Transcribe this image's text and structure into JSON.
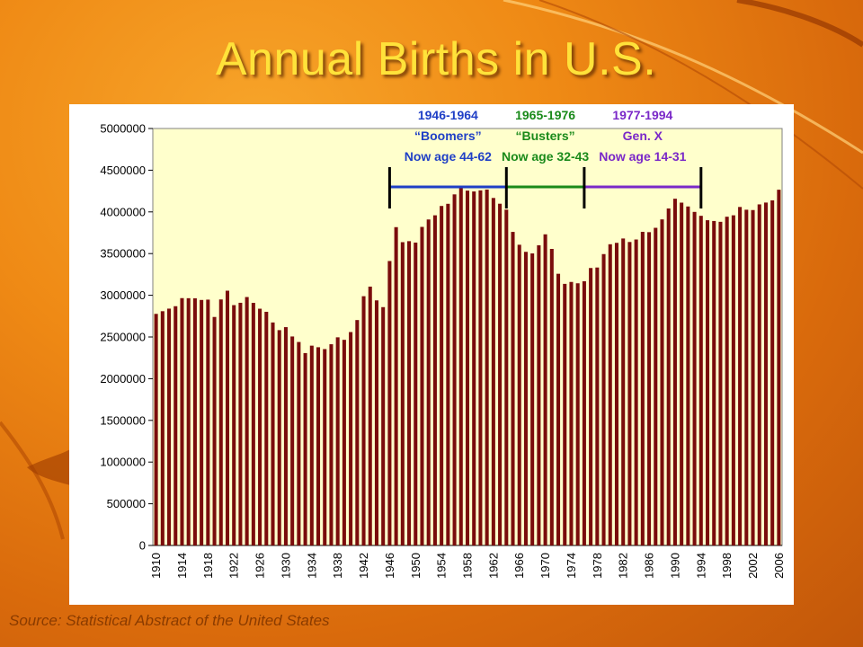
{
  "slide": {
    "title": "Annual Births in U.S.",
    "source": "Source: Statistical Abstract of the United States"
  },
  "colors": {
    "bar": "#7a0c0c",
    "plot_bg": "#ffffcc",
    "boomers": "#1f3fc6",
    "busters": "#1a8a1a",
    "genx": "#7a28c8",
    "title": "#ffe23a"
  },
  "generations": [
    {
      "lines": [
        "1946-1964",
        "“Boomers”",
        "Now age 44-62"
      ],
      "start": 1946,
      "end": 1964,
      "color": "#1f3fc6"
    },
    {
      "lines": [
        "1965-1976",
        "“Busters”",
        "Now age 32-43"
      ],
      "start": 1964,
      "end": 1976,
      "color": "#1a8a1a"
    },
    {
      "lines": [
        "1977-1994",
        "Gen. X",
        "Now age 14-31"
      ],
      "start": 1976,
      "end": 1994,
      "color": "#7a28c8"
    }
  ],
  "chart_data": {
    "type": "bar",
    "title": "Annual Births in U.S.",
    "xlabel": "",
    "ylabel": "",
    "ylim": [
      0,
      5000000
    ],
    "yticks": [
      0,
      500000,
      1000000,
      1500000,
      2000000,
      2500000,
      3000000,
      3500000,
      4000000,
      4500000,
      5000000
    ],
    "xtick_labels": [
      "1910",
      "1914",
      "1918",
      "1922",
      "1926",
      "1930",
      "1934",
      "1938",
      "1942",
      "1946",
      "1950",
      "1954",
      "1958",
      "1962",
      "1966",
      "1970",
      "1974",
      "1978",
      "1982",
      "1986",
      "1990",
      "1994",
      "1998",
      "2002",
      "2006"
    ],
    "grid": false,
    "legend": "none",
    "categories": [
      1910,
      1911,
      1912,
      1913,
      1914,
      1915,
      1916,
      1917,
      1918,
      1919,
      1920,
      1921,
      1922,
      1923,
      1924,
      1925,
      1926,
      1927,
      1928,
      1929,
      1930,
      1931,
      1932,
      1933,
      1934,
      1935,
      1936,
      1937,
      1938,
      1939,
      1940,
      1941,
      1942,
      1943,
      1944,
      1945,
      1946,
      1947,
      1948,
      1949,
      1950,
      1951,
      1952,
      1953,
      1954,
      1955,
      1956,
      1957,
      1958,
      1959,
      1960,
      1961,
      1962,
      1963,
      1964,
      1965,
      1966,
      1967,
      1968,
      1969,
      1970,
      1971,
      1972,
      1973,
      1974,
      1975,
      1976,
      1977,
      1978,
      1979,
      1980,
      1981,
      1982,
      1983,
      1984,
      1985,
      1986,
      1987,
      1988,
      1989,
      1990,
      1991,
      1992,
      1993,
      1994,
      1995,
      1996,
      1997,
      1998,
      1999,
      2000,
      2001,
      2002,
      2003,
      2004,
      2005,
      2006
    ],
    "values": [
      2777000,
      2809000,
      2840000,
      2869000,
      2966000,
      2965000,
      2964000,
      2944000,
      2948000,
      2740000,
      2950000,
      3055000,
      2882000,
      2910000,
      2979000,
      2909000,
      2839000,
      2802000,
      2674000,
      2582000,
      2618000,
      2506000,
      2440000,
      2307000,
      2396000,
      2377000,
      2355000,
      2413000,
      2496000,
      2466000,
      2559000,
      2703000,
      2989000,
      3104000,
      2939000,
      2858000,
      3411000,
      3817000,
      3637000,
      3649000,
      3632000,
      3820000,
      3909000,
      3959000,
      4071000,
      4097000,
      4210000,
      4300000,
      4255000,
      4245000,
      4258000,
      4268000,
      4167000,
      4098000,
      4027000,
      3760000,
      3606000,
      3521000,
      3502000,
      3600000,
      3731000,
      3556000,
      3258000,
      3137000,
      3160000,
      3144000,
      3168000,
      3327000,
      3333000,
      3494000,
      3612000,
      3629000,
      3681000,
      3639000,
      3669000,
      3761000,
      3757000,
      3809000,
      3910000,
      4041000,
      4158000,
      4111000,
      4065000,
      4000000,
      3953000,
      3900000,
      3891000,
      3881000,
      3942000,
      3959000,
      4059000,
      4026000,
      4022000,
      4090000,
      4112000,
      4138000,
      4266000
    ]
  }
}
